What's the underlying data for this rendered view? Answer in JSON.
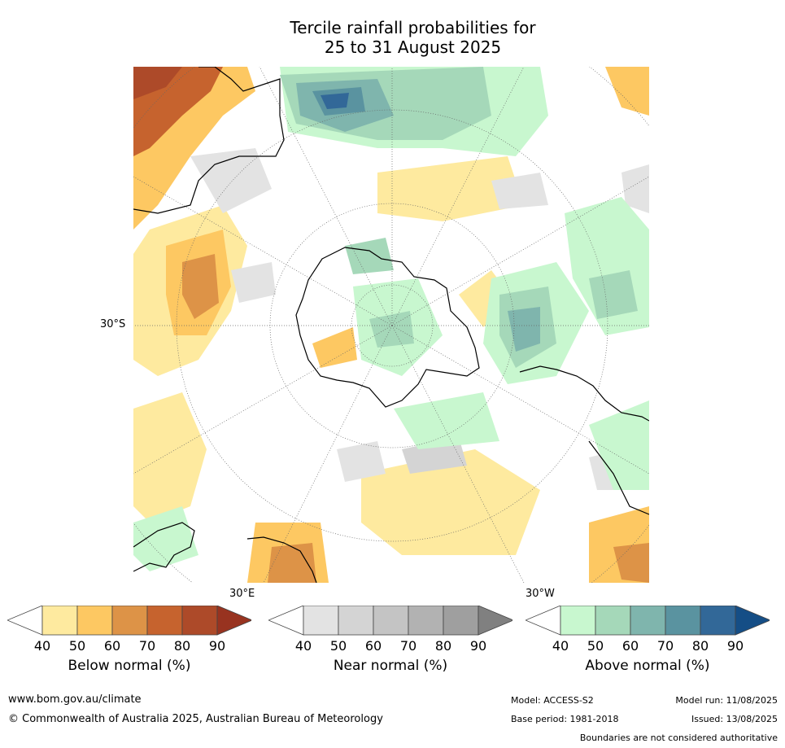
{
  "title_line1": "Tercile rainfall probabilities for",
  "title_line2": "25 to 31 August 2025",
  "map": {
    "projection": "south-polar-stereographic",
    "lat_label": "30°S",
    "lon_label_left": "30°E",
    "lon_label_right": "30°W"
  },
  "colorbars": [
    {
      "name": "below",
      "title": "Below normal (%)",
      "ticks": [
        "40",
        "50",
        "60",
        "70",
        "80",
        "90"
      ],
      "colors": [
        "#ffffff",
        "#feea9f",
        "#fdc862",
        "#dd9347",
        "#c6632e",
        "#ad4a29",
        "#983320"
      ]
    },
    {
      "name": "near",
      "title": "Near normal (%)",
      "ticks": [
        "40",
        "50",
        "60",
        "70",
        "80",
        "90"
      ],
      "colors": [
        "#ffffff",
        "#e3e3e3",
        "#d4d4d4",
        "#c4c4c4",
        "#b2b2b2",
        "#9f9f9f",
        "#808080"
      ]
    },
    {
      "name": "above",
      "title": "Above normal (%)",
      "ticks": [
        "40",
        "50",
        "60",
        "70",
        "80",
        "90"
      ],
      "colors": [
        "#ffffff",
        "#c8f7cf",
        "#a5d8b9",
        "#7fb5ad",
        "#5a93a0",
        "#326898",
        "#154e86"
      ]
    }
  ],
  "footer": {
    "url": "www.bom.gov.au/climate",
    "copyright": "© Commonwealth of Australia 2025, Australian Bureau of Meteorology",
    "model": "Model: ACCESS-S2",
    "base_period": "Base period: 1981-2018",
    "model_run": "Model run: 11/08/2025",
    "issued": "Issued: 13/08/2025",
    "disclaimer": "Boundaries are not considered authoritative"
  }
}
